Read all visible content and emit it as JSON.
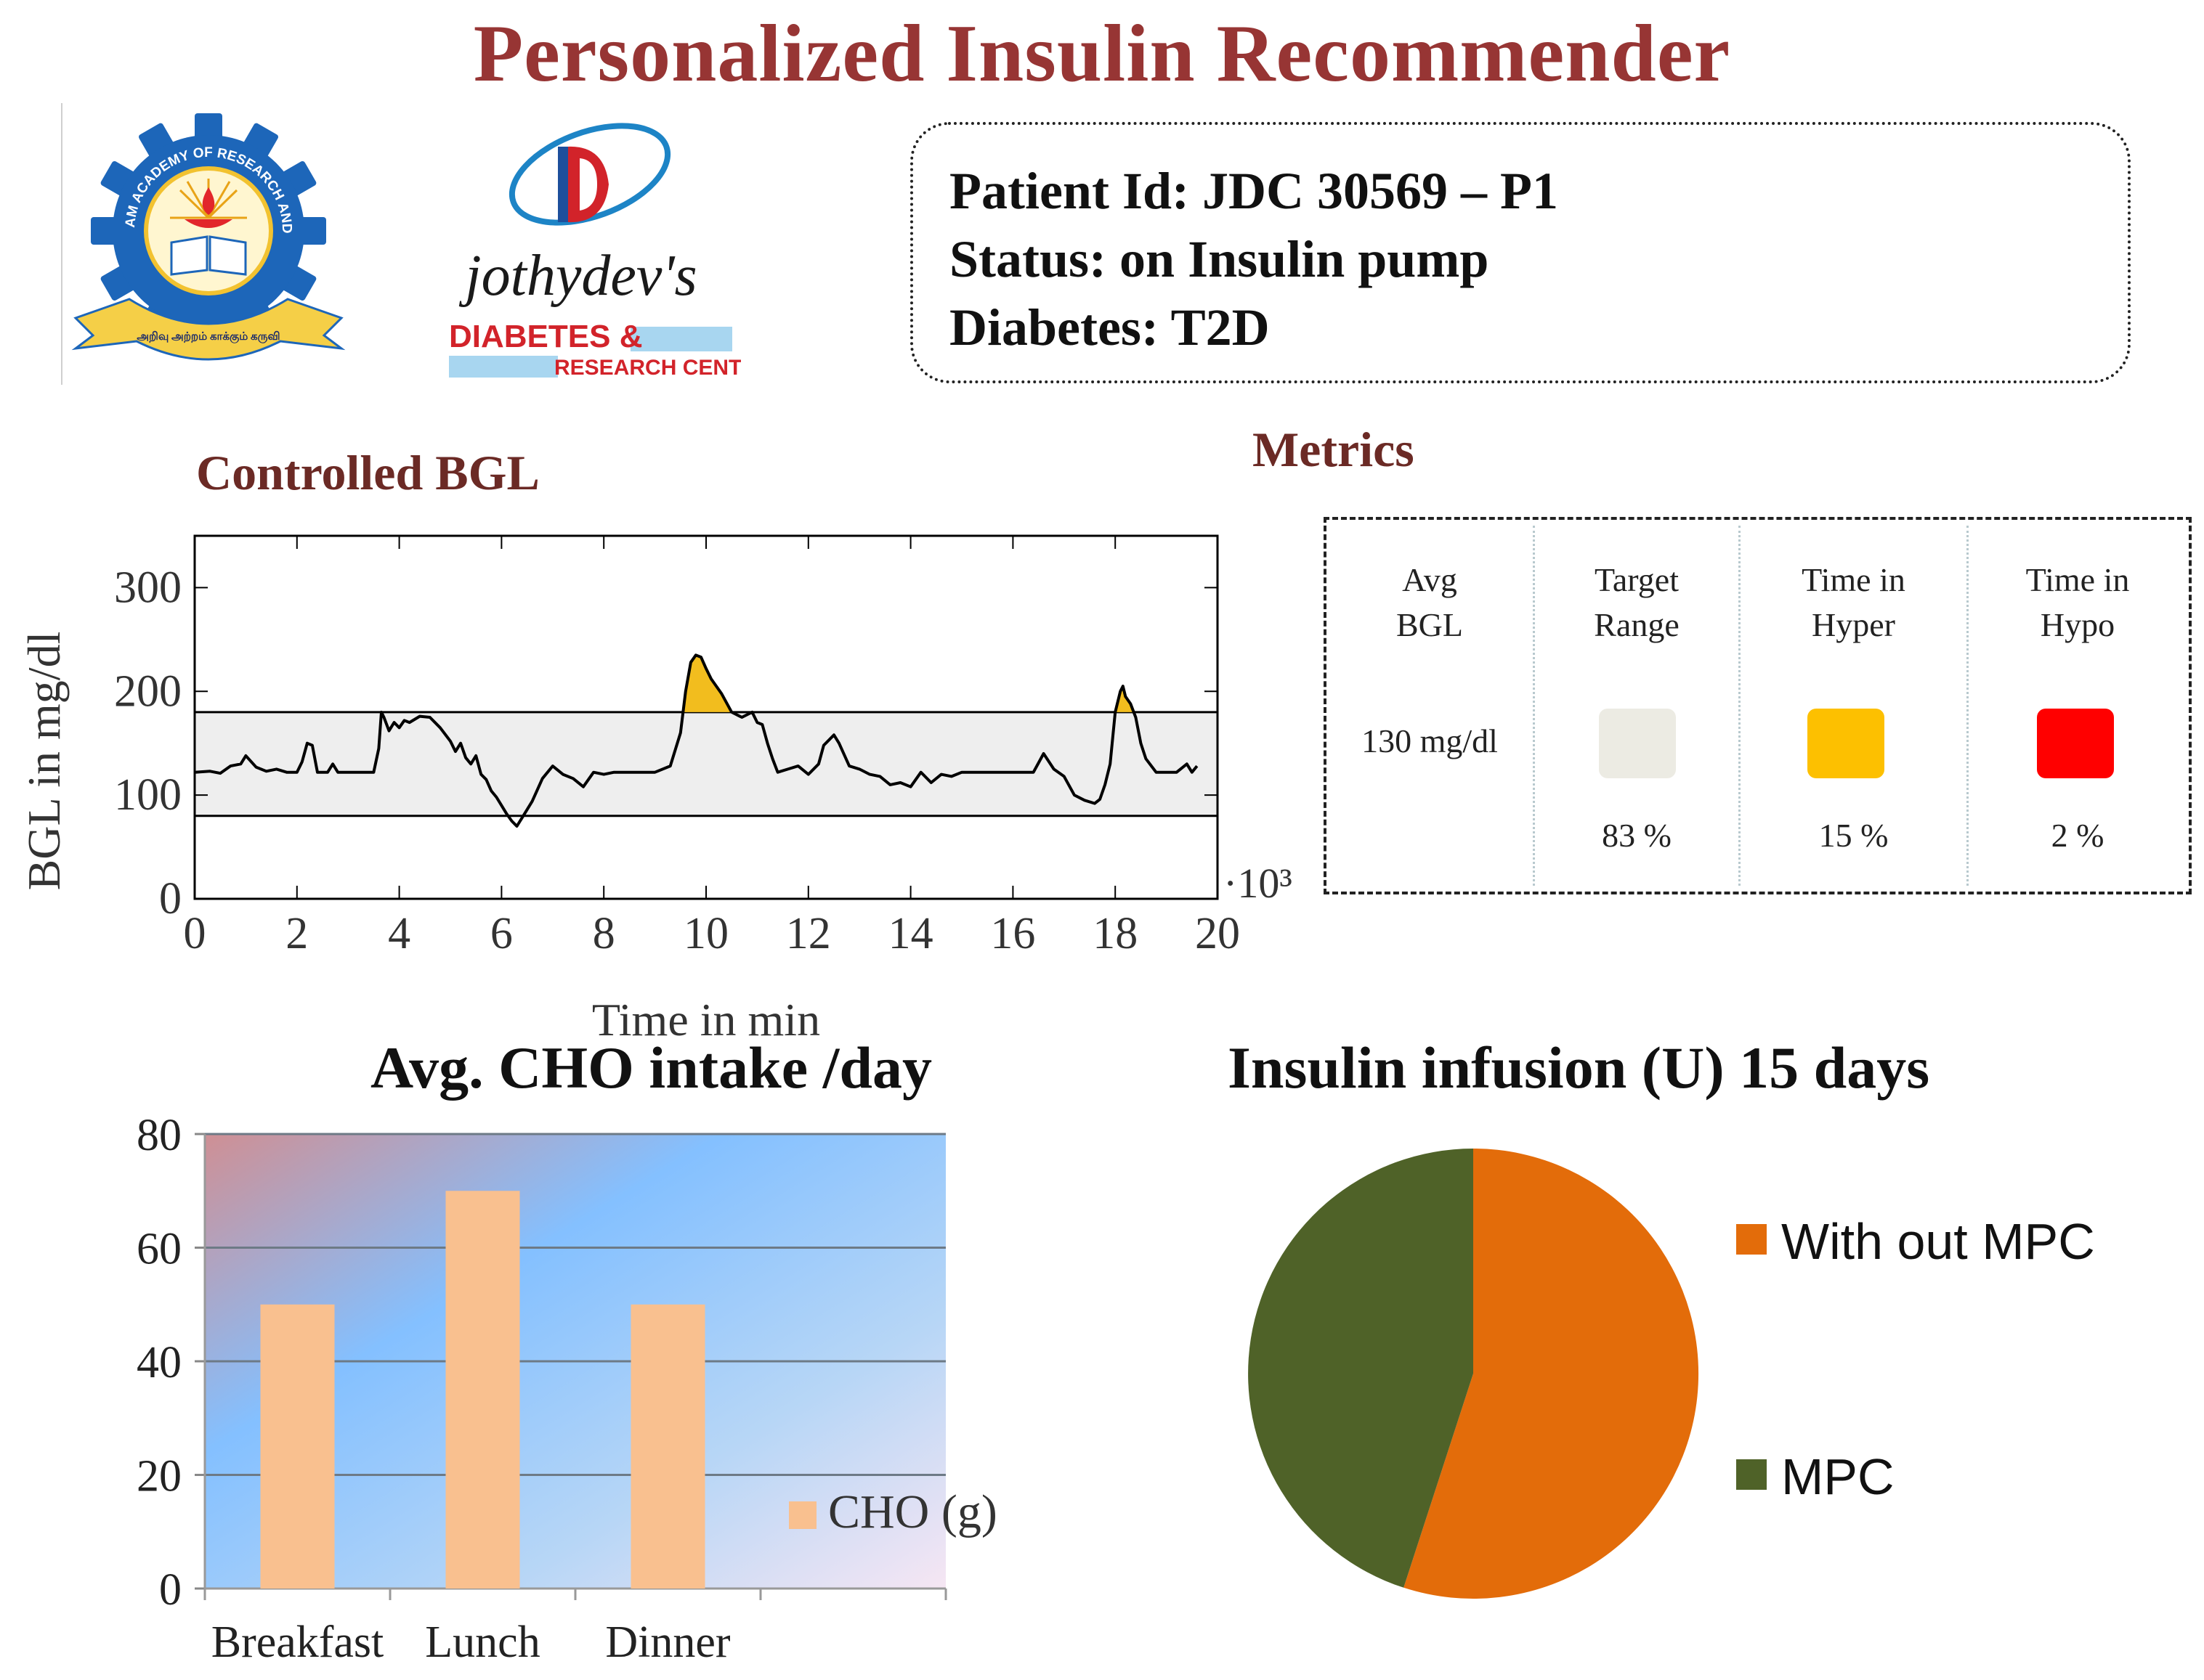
{
  "header": {
    "title": "Personalized Insulin Recommender"
  },
  "logos": {
    "university": {
      "ring_text": "KALASALINGAM ACADEMY OF RESEARCH AND EDUCATION",
      "motto": "அறிவு அற்றம் காக்கும் கருவி"
    },
    "jothydev": {
      "name": "jothydev's",
      "line1": "DIABETES &",
      "line2": "RESEARCH CENTRE"
    }
  },
  "patient": {
    "id_line": "Patient Id: JDC 30569 – P1",
    "status_line": "Status: on Insulin pump",
    "diabetes_line": "Diabetes: T2D"
  },
  "metrics": {
    "title": "Metrics",
    "columns": [
      {
        "label_line1": "Avg",
        "label_line2": "BGL",
        "value": "130 mg/dl"
      },
      {
        "label_line1": "Target",
        "label_line2": "Range",
        "value": "83 %",
        "color": "#ecebe3"
      },
      {
        "label_line1": "Time in",
        "label_line2": "Hyper",
        "value": "15 %",
        "color": "#fdc000"
      },
      {
        "label_line1": "Time in",
        "label_line2": "Hypo",
        "value": "2 %",
        "color": "#ff0000"
      }
    ]
  },
  "chart_data": [
    {
      "type": "line",
      "title": "Controlled BGL",
      "xlabel": "Time in min",
      "ylabel": "BGL in mg/dl",
      "x_multiplier": "·10³",
      "xlim": [
        0,
        20
      ],
      "ylim": [
        0,
        350
      ],
      "xticks": [
        0,
        2,
        4,
        6,
        8,
        10,
        12,
        14,
        16,
        18,
        20
      ],
      "yticks": [
        0,
        100,
        200,
        300
      ],
      "target_band": [
        80,
        180
      ],
      "line_color": "#000000",
      "band_color": "#eeeeee",
      "hyper_fill_color": "#f2bd1e",
      "x": [
        0,
        0.3,
        0.5,
        0.7,
        0.9,
        1.0,
        1.2,
        1.4,
        1.6,
        1.8,
        2.0,
        2.1,
        2.2,
        2.3,
        2.4,
        2.6,
        2.7,
        2.8,
        3.0,
        3.2,
        3.5,
        3.6,
        3.65,
        3.7,
        3.8,
        3.9,
        4.0,
        4.1,
        4.2,
        4.4,
        4.6,
        4.8,
        5.0,
        5.1,
        5.2,
        5.3,
        5.4,
        5.5,
        5.6,
        5.7,
        5.8,
        5.9,
        6.0,
        6.1,
        6.2,
        6.3,
        6.4,
        6.6,
        6.8,
        7.0,
        7.2,
        7.4,
        7.6,
        7.8,
        8.0,
        8.2,
        8.5,
        8.7,
        9.0,
        9.3,
        9.5,
        9.6,
        9.7,
        9.8,
        9.9,
        10.0,
        10.1,
        10.3,
        10.5,
        10.7,
        10.9,
        11.0,
        11.1,
        11.2,
        11.3,
        11.4,
        11.6,
        11.8,
        12.0,
        12.2,
        12.3,
        12.5,
        12.6,
        12.8,
        13.0,
        13.2,
        13.4,
        13.6,
        13.8,
        14.0,
        14.2,
        14.4,
        14.6,
        14.8,
        15.0,
        15.2,
        15.5,
        15.8,
        16.0,
        16.2,
        16.4,
        16.6,
        16.8,
        17.0,
        17.2,
        17.4,
        17.6,
        17.7,
        17.8,
        17.9,
        18.0,
        18.1,
        18.15,
        18.2,
        18.3,
        18.4,
        18.5,
        18.6,
        18.8,
        19.0,
        19.2,
        19.4,
        19.5,
        19.6
      ],
      "y": [
        122,
        123,
        121,
        128,
        130,
        138,
        127,
        123,
        125,
        122,
        122,
        132,
        150,
        148,
        122,
        122,
        130,
        122,
        122,
        122,
        122,
        145,
        180,
        175,
        162,
        170,
        165,
        172,
        170,
        176,
        175,
        165,
        152,
        142,
        150,
        136,
        130,
        138,
        120,
        115,
        104,
        98,
        90,
        82,
        75,
        70,
        78,
        94,
        116,
        128,
        120,
        116,
        108,
        122,
        120,
        122,
        122,
        122,
        122,
        128,
        160,
        200,
        228,
        235,
        233,
        222,
        212,
        198,
        180,
        175,
        180,
        170,
        168,
        150,
        135,
        122,
        125,
        128,
        120,
        130,
        148,
        158,
        150,
        128,
        125,
        120,
        118,
        110,
        112,
        108,
        122,
        112,
        120,
        118,
        122,
        122,
        122,
        122,
        122,
        122,
        122,
        140,
        125,
        118,
        100,
        95,
        92,
        96,
        110,
        130,
        180,
        200,
        205,
        195,
        188,
        175,
        150,
        135,
        122,
        122,
        122,
        130,
        122,
        128
      ]
    },
    {
      "type": "bar",
      "title": "Avg. CHO intake /day",
      "categories": [
        "Breakfast",
        "Lunch",
        "Dinner",
        ""
      ],
      "series": [
        {
          "name": "CHO (g)",
          "values": [
            50,
            70,
            50,
            null
          ],
          "color": "#f9c08f"
        }
      ],
      "yticks": [
        0,
        20,
        40,
        60,
        80
      ],
      "ylim": [
        0,
        80
      ],
      "legend": "right"
    },
    {
      "type": "pie",
      "title": "Insulin infusion (U) 15 days",
      "labels": [
        "With out MPC",
        "MPC"
      ],
      "values": [
        55,
        45
      ],
      "colors": [
        "#e36c0a",
        "#4f6228"
      ],
      "legend": "right"
    }
  ]
}
